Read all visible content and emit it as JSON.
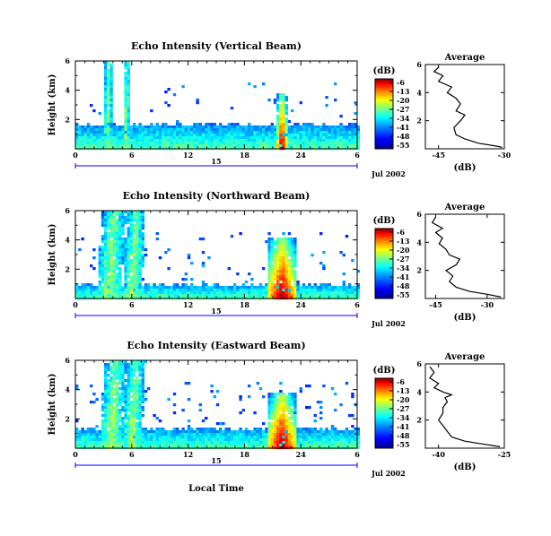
{
  "colors": {
    "jet": [
      "#00008f",
      "#0000ff",
      "#007fff",
      "#00ffff",
      "#7fff7f",
      "#ffff00",
      "#ff7f00",
      "#ff0000",
      "#7f0000"
    ],
    "timeline": "#0000ff"
  },
  "chart_data": [
    {
      "type": "heatmap",
      "title": "Echo Intensity (Vertical Beam)",
      "ylabel": "Height (km)",
      "x_ticks": [
        "0",
        "6",
        "12",
        "18",
        "24",
        "6"
      ],
      "y_ticks": [
        "2",
        "4",
        "6"
      ],
      "xlim": [
        0,
        30
      ],
      "ylim": [
        0,
        6
      ],
      "date_label": "Jul 2002",
      "timeline_label": "15",
      "colorbar": {
        "unit": "(dB)",
        "ticks": [
          "-6",
          "-13",
          "-20",
          "-27",
          "-34",
          "-41",
          "-48",
          "-55"
        ]
      },
      "features": [
        {
          "x": [
            0,
            30
          ],
          "y": [
            0,
            1.5
          ],
          "level": "low-moderate"
        },
        {
          "x": [
            3.0,
            3.8
          ],
          "y": [
            0,
            6
          ],
          "level": "moderate"
        },
        {
          "x": [
            5.0,
            5.7
          ],
          "y": [
            0,
            6
          ],
          "level": "moderate"
        },
        {
          "x": [
            21.5,
            22.5
          ],
          "y": [
            0,
            3.8
          ],
          "level": "strong"
        }
      ],
      "average": {
        "title": "Average",
        "xlabel": "(dB)",
        "x_ticks": [
          "-45",
          "-30"
        ],
        "y_ticks": [
          "2",
          "4",
          "6"
        ],
        "xlim": [
          -48,
          -30
        ],
        "ylim": [
          0,
          6
        ],
        "profile": [
          [
            -30.5,
            0.1
          ],
          [
            -32,
            0.2
          ],
          [
            -36,
            0.4
          ],
          [
            -39,
            0.7
          ],
          [
            -41,
            1.0
          ],
          [
            -41.5,
            1.5
          ],
          [
            -40,
            2.0
          ],
          [
            -39,
            2.4
          ],
          [
            -41,
            2.7
          ],
          [
            -40,
            3.2
          ],
          [
            -41,
            3.6
          ],
          [
            -43,
            4.0
          ],
          [
            -42,
            4.4
          ],
          [
            -45,
            4.8
          ],
          [
            -44,
            5.2
          ],
          [
            -46,
            5.5
          ],
          [
            -45,
            5.8
          ]
        ]
      }
    },
    {
      "type": "heatmap",
      "title": "Echo Intensity (Northward Beam)",
      "ylabel": "Height (km)",
      "x_ticks": [
        "0",
        "6",
        "12",
        "18",
        "24",
        "6"
      ],
      "y_ticks": [
        "2",
        "4",
        "6"
      ],
      "xlim": [
        0,
        30
      ],
      "ylim": [
        0,
        6
      ],
      "date_label": "Jul 2002",
      "timeline_label": "15",
      "colorbar": {
        "unit": "(dB)",
        "ticks": [
          "-6",
          "-13",
          "-20",
          "-27",
          "-34",
          "-41",
          "-48",
          "-55"
        ]
      },
      "features": [
        {
          "x": [
            0,
            30
          ],
          "y": [
            0,
            0.8
          ],
          "level": "moderate"
        },
        {
          "x": [
            2.2,
            4.8
          ],
          "y": [
            0,
            6
          ],
          "level": "moderate"
        },
        {
          "x": [
            5.0,
            7.0
          ],
          "y": [
            0,
            6
          ],
          "level": "moderate"
        },
        {
          "x": [
            20.5,
            23.5
          ],
          "y": [
            0,
            4.2
          ],
          "level": "strong"
        }
      ],
      "average": {
        "title": "Average",
        "xlabel": "(dB)",
        "x_ticks": [
          "-45",
          "-30"
        ],
        "y_ticks": [
          "2",
          "4",
          "6"
        ],
        "xlim": [
          -48,
          -25
        ],
        "ylim": [
          0,
          6
        ],
        "profile": [
          [
            -26,
            0.1
          ],
          [
            -30,
            0.3
          ],
          [
            -35,
            0.5
          ],
          [
            -39,
            0.8
          ],
          [
            -41,
            1.2
          ],
          [
            -40,
            1.6
          ],
          [
            -42,
            2.0
          ],
          [
            -39,
            2.4
          ],
          [
            -38,
            2.8
          ],
          [
            -41,
            3.1
          ],
          [
            -42,
            3.5
          ],
          [
            -44,
            3.9
          ],
          [
            -43,
            4.3
          ],
          [
            -45,
            4.7
          ],
          [
            -43,
            5.0
          ],
          [
            -46,
            5.4
          ],
          [
            -45,
            5.8
          ]
        ]
      }
    },
    {
      "type": "heatmap",
      "title": "Echo Intensity (Eastward Beam)",
      "ylabel": "Height (km)",
      "x_ticks": [
        "0",
        "6",
        "12",
        "18",
        "24",
        "6"
      ],
      "y_ticks": [
        "2",
        "4",
        "6"
      ],
      "xlim": [
        0,
        30
      ],
      "ylim": [
        0,
        6
      ],
      "date_label": "Jul 2002",
      "timeline_label": "15",
      "xlabel": "Local Time",
      "colorbar": {
        "unit": "(dB)",
        "ticks": [
          "-6",
          "-13",
          "-20",
          "-27",
          "-34",
          "-41",
          "-48",
          "-55"
        ]
      },
      "features": [
        {
          "x": [
            0,
            30
          ],
          "y": [
            0,
            1.2
          ],
          "level": "moderate"
        },
        {
          "x": [
            2.5,
            5.0
          ],
          "y": [
            0,
            6
          ],
          "level": "moderate-strong"
        },
        {
          "x": [
            5.0,
            7.0
          ],
          "y": [
            0,
            6
          ],
          "level": "moderate"
        },
        {
          "x": [
            20.5,
            23.5
          ],
          "y": [
            0,
            3.8
          ],
          "level": "strong"
        }
      ],
      "average": {
        "title": "Average",
        "xlabel": "(dB)",
        "x_ticks": [
          "-40",
          "-25"
        ],
        "y_ticks": [
          "2",
          "4",
          "6"
        ],
        "xlim": [
          -43,
          -25
        ],
        "ylim": [
          0,
          6
        ],
        "profile": [
          [
            -26,
            0.1
          ],
          [
            -30,
            0.3
          ],
          [
            -34,
            0.5
          ],
          [
            -37,
            0.8
          ],
          [
            -38,
            1.2
          ],
          [
            -39,
            1.6
          ],
          [
            -40,
            2.0
          ],
          [
            -39,
            2.5
          ],
          [
            -39,
            2.9
          ],
          [
            -38,
            3.3
          ],
          [
            -38.5,
            3.6
          ],
          [
            -37,
            3.8
          ],
          [
            -39,
            4.0
          ],
          [
            -41,
            4.3
          ],
          [
            -40,
            4.6
          ],
          [
            -42,
            5.0
          ],
          [
            -41,
            5.4
          ],
          [
            -42,
            5.8
          ]
        ]
      }
    }
  ]
}
